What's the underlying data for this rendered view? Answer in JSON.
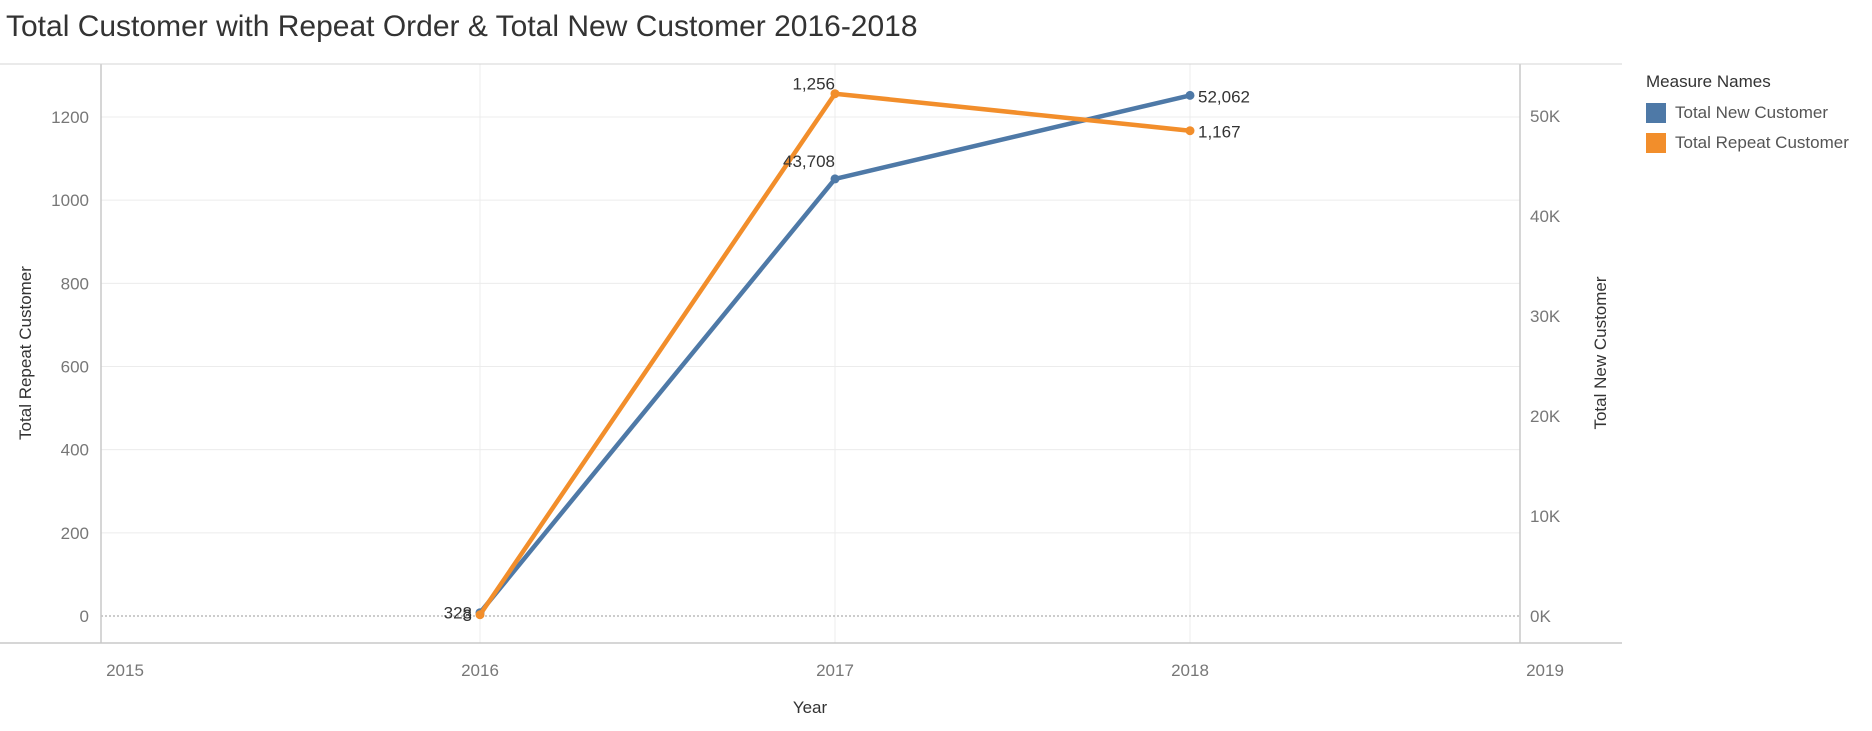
{
  "chart_data": {
    "type": "line",
    "title": "Total Customer with Repeat Order & Total New Customer 2016-2018",
    "xlabel": "Year",
    "x_ticks": [
      "2015",
      "2016",
      "2017",
      "2018",
      "2019"
    ],
    "x": [
      "2016",
      "2017",
      "2018"
    ],
    "y_left_label": "Total Repeat Customer",
    "y_left_ticks": [
      "0",
      "200",
      "400",
      "600",
      "800",
      "1000",
      "1200"
    ],
    "y_left_lim": [
      0,
      1320
    ],
    "y_right_label": "Total New Customer",
    "y_right_ticks": [
      "0K",
      "10K",
      "20K",
      "30K",
      "40K",
      "50K"
    ],
    "y_right_lim": [
      0,
      55200
    ],
    "grid": true,
    "legend_title": "Measure Names",
    "legend_position": "right",
    "series": [
      {
        "name": "Total New Customer",
        "axis": "right",
        "color": "#4e79a7",
        "values": [
          328,
          43708,
          52062
        ],
        "labels": [
          "328",
          "43,708",
          "52,062"
        ]
      },
      {
        "name": "Total Repeat Customer",
        "axis": "left",
        "color": "#f28e2b",
        "values": [
          3,
          1256,
          1167
        ],
        "labels": [
          "3",
          "1,256",
          "1,167"
        ]
      }
    ]
  }
}
